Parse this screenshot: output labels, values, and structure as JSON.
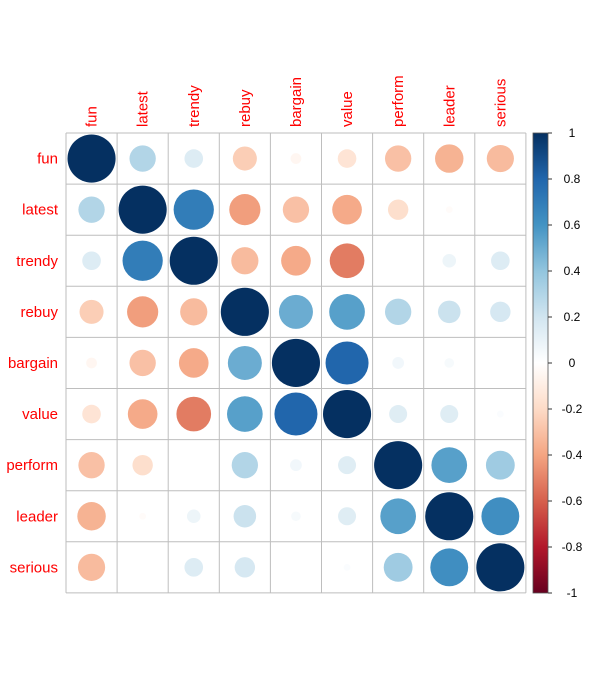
{
  "chart_data": {
    "type": "heatmap",
    "variables": [
      "fun",
      "latest",
      "trendy",
      "rebuy",
      "bargain",
      "value",
      "perform",
      "leader",
      "serious"
    ],
    "matrix": [
      [
        1.0,
        0.3,
        0.15,
        -0.25,
        -0.05,
        -0.15,
        -0.3,
        -0.35,
        -0.32
      ],
      [
        0.3,
        1.0,
        0.7,
        -0.42,
        -0.3,
        -0.38,
        -0.18,
        -0.02,
        0.0
      ],
      [
        0.15,
        0.7,
        1.0,
        -0.32,
        -0.38,
        -0.52,
        0.0,
        0.08,
        0.15
      ],
      [
        -0.25,
        -0.42,
        -0.32,
        1.0,
        0.5,
        0.55,
        0.3,
        0.22,
        0.18
      ],
      [
        -0.05,
        -0.3,
        -0.38,
        0.5,
        1.0,
        0.8,
        0.06,
        0.04,
        0.0
      ],
      [
        -0.15,
        -0.38,
        -0.52,
        0.55,
        0.8,
        1.0,
        0.14,
        0.14,
        0.02
      ],
      [
        -0.3,
        -0.18,
        0.0,
        0.3,
        0.06,
        0.14,
        1.0,
        0.55,
        0.36
      ],
      [
        -0.35,
        -0.02,
        0.08,
        0.22,
        0.04,
        0.14,
        0.55,
        1.0,
        0.62
      ],
      [
        -0.32,
        0.0,
        0.15,
        0.18,
        0.0,
        0.02,
        0.36,
        0.62,
        1.0
      ]
    ],
    "colorbar": {
      "range": [
        -1,
        1
      ],
      "ticks": [
        "1",
        "0.8",
        "0.6",
        "0.4",
        "0.2",
        "0",
        "-0.2",
        "-0.4",
        "-0.6",
        "-0.8",
        "-1"
      ]
    },
    "colors": {
      "label": "#ff0000",
      "grid": "#bebebe",
      "palette": [
        "#67001f",
        "#b2182b",
        "#d6604d",
        "#f4a582",
        "#fddbc7",
        "#ffffff",
        "#d1e5f0",
        "#92c5de",
        "#4393c3",
        "#2166ac",
        "#053061"
      ]
    },
    "grid": true
  }
}
